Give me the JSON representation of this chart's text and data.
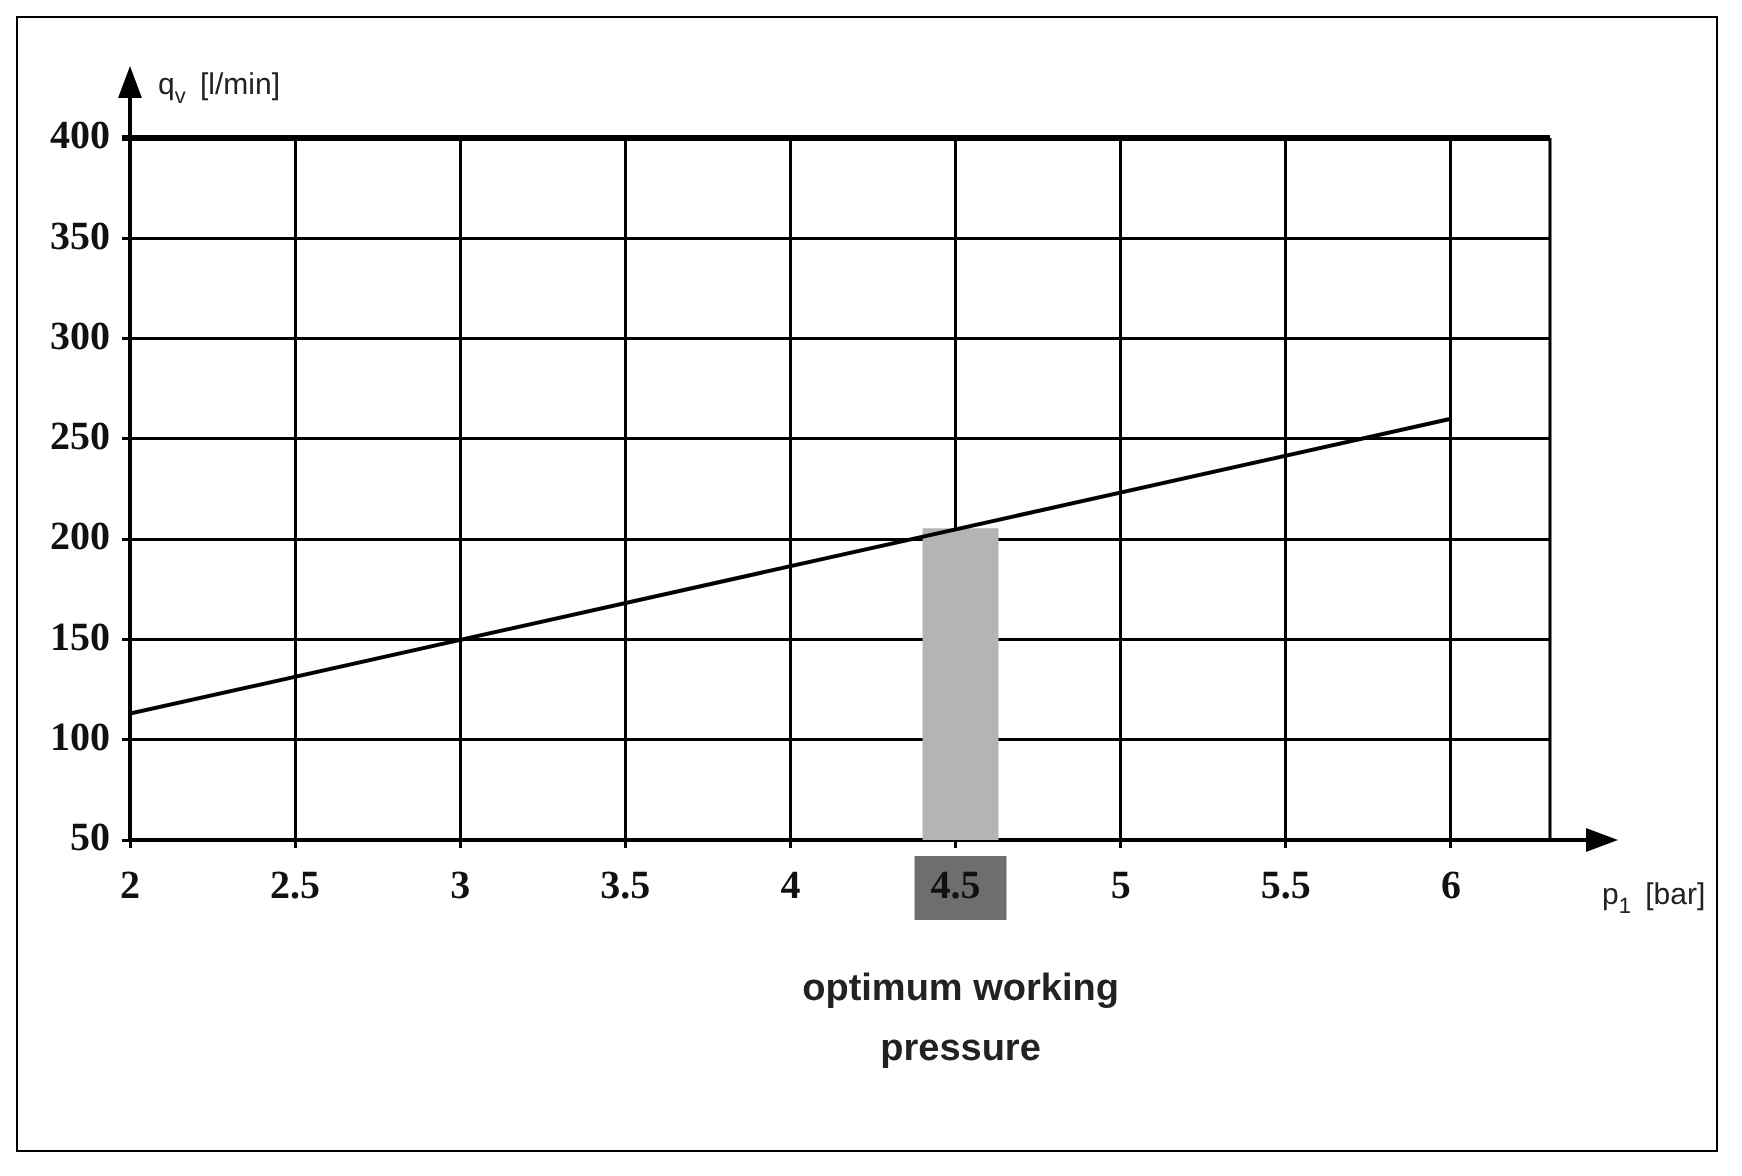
{
  "chart_data": {
    "type": "line",
    "xlabel": "p$_{1}$ [bar]",
    "ylabel": "q$_{v}$ [l/min]",
    "x": [
      2,
      6
    ],
    "series": [
      {
        "color": "#000000",
        "values": [
          113,
          260
        ]
      }
    ],
    "xlim": [
      2,
      6.3
    ],
    "ylim": [
      50,
      400
    ],
    "xticks": [
      2,
      2.5,
      3,
      3.5,
      4,
      4.5,
      5,
      5.5,
      6
    ],
    "yticks": [
      50,
      100,
      150,
      200,
      250,
      300,
      350,
      400
    ],
    "grid": true,
    "legend": false,
    "marker": "none",
    "line_style": "solid",
    "bands": [
      {
        "axis": "x",
        "from": 4.4,
        "to": 4.63,
        "color": "#b4b4b4"
      }
    ],
    "annotations": [
      "optimum working pressure"
    ]
  }
}
